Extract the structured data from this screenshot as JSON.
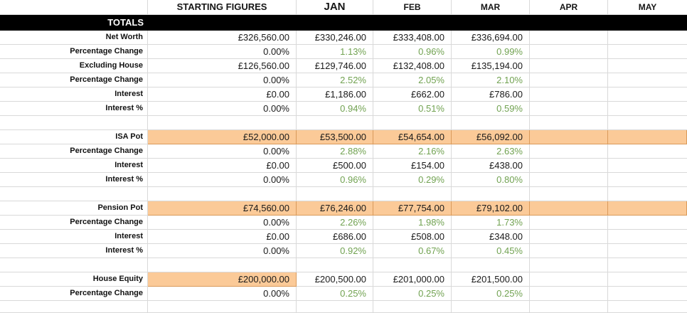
{
  "sheet": {
    "header": {
      "labels": [
        "STARTING FIGURES",
        "JAN",
        "FEB",
        "MAR",
        "APR",
        "MAY"
      ]
    },
    "totals_band_label": "TOTALS",
    "rows": [
      {
        "label": "Net Worth",
        "type": "currency",
        "fill": "none",
        "values": [
          "£326,560.00",
          "£330,246.00",
          "£333,408.00",
          "£336,694.00",
          "",
          ""
        ]
      },
      {
        "label": "Percentage Change",
        "type": "percent",
        "fill": "none",
        "values": [
          "0.00%",
          "1.13%",
          "0.96%",
          "0.99%",
          "",
          ""
        ]
      },
      {
        "label": "Excluding House",
        "type": "currency",
        "fill": "none",
        "values": [
          "£126,560.00",
          "£129,746.00",
          "£132,408.00",
          "£135,194.00",
          "",
          ""
        ]
      },
      {
        "label": "Percentage Change",
        "type": "percent",
        "fill": "none",
        "values": [
          "0.00%",
          "2.52%",
          "2.05%",
          "2.10%",
          "",
          ""
        ]
      },
      {
        "label": "Interest",
        "type": "currency",
        "fill": "none",
        "values": [
          "£0.00",
          "£1,186.00",
          "£662.00",
          "£786.00",
          "",
          ""
        ]
      },
      {
        "label": "Interest %",
        "type": "percent",
        "fill": "none",
        "values": [
          "0.00%",
          "0.94%",
          "0.51%",
          "0.59%",
          "",
          ""
        ]
      },
      {
        "label": "",
        "type": "blank",
        "fill": "none",
        "values": [
          "",
          "",
          "",
          "",
          "",
          ""
        ]
      },
      {
        "label": "ISA Pot",
        "type": "currency",
        "fill": "full",
        "values": [
          "£52,000.00",
          "£53,500.00",
          "£54,654.00",
          "£56,092.00",
          "",
          ""
        ]
      },
      {
        "label": "Percentage Change",
        "type": "percent",
        "fill": "none",
        "values": [
          "0.00%",
          "2.88%",
          "2.16%",
          "2.63%",
          "",
          ""
        ]
      },
      {
        "label": "Interest",
        "type": "currency",
        "fill": "none",
        "values": [
          "£0.00",
          "£500.00",
          "£154.00",
          "£438.00",
          "",
          ""
        ]
      },
      {
        "label": "Interest %",
        "type": "percent",
        "fill": "none",
        "values": [
          "0.00%",
          "0.96%",
          "0.29%",
          "0.80%",
          "",
          ""
        ]
      },
      {
        "label": "",
        "type": "blank",
        "fill": "none",
        "values": [
          "",
          "",
          "",
          "",
          "",
          ""
        ]
      },
      {
        "label": "Pension Pot",
        "type": "currency",
        "fill": "full",
        "values": [
          "£74,560.00",
          "£76,246.00",
          "£77,754.00",
          "£79,102.00",
          "",
          ""
        ]
      },
      {
        "label": "Percentage Change",
        "type": "percent",
        "fill": "none",
        "values": [
          "0.00%",
          "2.26%",
          "1.98%",
          "1.73%",
          "",
          ""
        ]
      },
      {
        "label": "Interest",
        "type": "currency",
        "fill": "none",
        "values": [
          "£0.00",
          "£686.00",
          "£508.00",
          "£348.00",
          "",
          ""
        ]
      },
      {
        "label": "Interest %",
        "type": "percent",
        "fill": "none",
        "values": [
          "0.00%",
          "0.92%",
          "0.67%",
          "0.45%",
          "",
          ""
        ]
      },
      {
        "label": "",
        "type": "blank",
        "fill": "none",
        "values": [
          "",
          "",
          "",
          "",
          "",
          ""
        ]
      },
      {
        "label": "House Equity",
        "type": "currency",
        "fill": "start",
        "values": [
          "£200,000.00",
          "£200,500.00",
          "£201,000.00",
          "£201,500.00",
          "",
          ""
        ]
      },
      {
        "label": "Percentage Change",
        "type": "percent",
        "fill": "none",
        "values": [
          "0.00%",
          "0.25%",
          "0.25%",
          "0.25%",
          "",
          ""
        ]
      },
      {
        "label": "",
        "type": "blank",
        "fill": "none",
        "values": [
          "",
          "",
          "",
          "",
          "",
          ""
        ]
      }
    ]
  },
  "colors": {
    "highlight_fill": "#fbca98",
    "highlight_border": "#d99a5b",
    "positive_text": "#71a251",
    "totals_band_bg": "#000000",
    "gridline": "#d9d9d9"
  }
}
